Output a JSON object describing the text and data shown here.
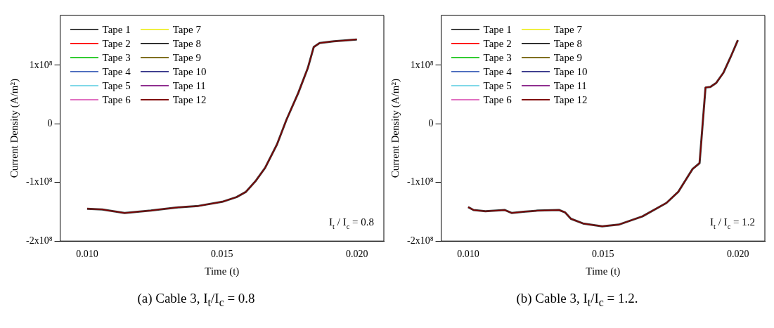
{
  "chart_data": [
    {
      "type": "line",
      "xlabel": "Time (t)",
      "ylabel": "Current Density (A/m²)",
      "xlim": [
        0.009,
        0.021
      ],
      "ylim": [
        -200000000,
        185000000
      ],
      "xticks": [
        {
          "value": 0.01,
          "label": "0.010"
        },
        {
          "value": 0.015,
          "label": "0.015"
        },
        {
          "value": 0.02,
          "label": "0.020"
        }
      ],
      "yticks": [
        {
          "value": -200000000,
          "label": "-2x10⁸"
        },
        {
          "value": -100000000,
          "label": "-1x10⁸"
        },
        0,
        {
          "value": 100000000,
          "label": "1x10⁸"
        }
      ],
      "legend": "top left",
      "marker": "none",
      "line_style": "solid",
      "annotations": [
        "I$_{t}$ / I$_{c}$ = 0.8",
        "(a) Cable 3, I$_{t}$/I$_{c}$ = 0.8"
      ],
      "x": [
        0.01,
        0.01056,
        0.01139,
        0.01236,
        0.01325,
        0.01413,
        0.01501,
        0.01554,
        0.01589,
        0.01624,
        0.0166,
        0.01704,
        0.01739,
        0.01783,
        0.01818,
        0.0184,
        0.01862,
        0.01915,
        0.02
      ],
      "series": [
        {
          "name": "Tape 1",
          "color": "#404040",
          "values": [
            -145000000,
            -146000000,
            -152000000,
            -148000000,
            -143000000,
            -140000000,
            -133000000,
            -125000000,
            -116000000,
            -98000000,
            -75000000,
            -35000000,
            7000000,
            53000000,
            95000000,
            131000000,
            138000000,
            141000000,
            144000000
          ]
        },
        {
          "name": "Tape 2",
          "color": "#ff0000",
          "values": [
            null,
            null,
            null,
            null,
            null,
            null,
            null,
            null,
            null,
            null,
            null,
            null,
            null,
            null,
            null,
            null,
            null,
            null,
            null
          ]
        },
        {
          "name": "Tape 3",
          "color": "#33cc33",
          "values": [
            null,
            null,
            null,
            null,
            null,
            null,
            null,
            null,
            null,
            null,
            null,
            null,
            null,
            null,
            null,
            null,
            null,
            null,
            null
          ]
        },
        {
          "name": "Tape 4",
          "color": "#5070c0",
          "values": [
            null,
            null,
            null,
            null,
            null,
            null,
            null,
            null,
            null,
            null,
            null,
            null,
            null,
            null,
            null,
            null,
            null,
            null,
            null
          ]
        },
        {
          "name": "Tape 5",
          "color": "#80d8e8",
          "values": [
            null,
            null,
            null,
            null,
            null,
            null,
            null,
            null,
            null,
            null,
            null,
            null,
            null,
            null,
            null,
            null,
            null,
            null,
            null
          ]
        },
        {
          "name": "Tape 6",
          "color": "#e070c0",
          "values": [
            null,
            null,
            null,
            null,
            null,
            null,
            null,
            null,
            null,
            null,
            null,
            null,
            null,
            null,
            null,
            null,
            null,
            null,
            null
          ]
        },
        {
          "name": "Tape 7",
          "color": "#f0f040",
          "values": [
            null,
            null,
            null,
            null,
            null,
            null,
            null,
            null,
            null,
            null,
            null,
            null,
            null,
            null,
            null,
            null,
            null,
            null,
            null
          ]
        },
        {
          "name": "Tape 8",
          "color": "#303030",
          "values": [
            null,
            null,
            null,
            null,
            null,
            null,
            null,
            null,
            null,
            null,
            null,
            null,
            null,
            null,
            null,
            null,
            null,
            null,
            null
          ]
        },
        {
          "name": "Tape 9",
          "color": "#807020",
          "values": [
            null,
            null,
            null,
            null,
            null,
            null,
            null,
            null,
            null,
            null,
            null,
            null,
            null,
            null,
            null,
            null,
            null,
            null,
            null
          ]
        },
        {
          "name": "Tape 10",
          "color": "#404090",
          "values": [
            null,
            null,
            null,
            null,
            null,
            null,
            null,
            null,
            null,
            null,
            null,
            null,
            null,
            null,
            null,
            null,
            null,
            null,
            null
          ]
        },
        {
          "name": "Tape 11",
          "color": "#903090",
          "values": [
            null,
            null,
            null,
            null,
            null,
            null,
            null,
            null,
            null,
            null,
            null,
            null,
            null,
            null,
            null,
            null,
            null,
            null,
            null
          ]
        },
        {
          "name": "Tape 12",
          "color": "#800000",
          "values": [
            -145000000,
            -146000000,
            -152000000,
            -148000000,
            -143000000,
            -140000000,
            -133000000,
            -125000000,
            -116000000,
            -98000000,
            -75000000,
            -35000000,
            7000000,
            53000000,
            95000000,
            131000000,
            138000000,
            141000000,
            144000000
          ]
        }
      ]
    },
    {
      "type": "line",
      "xlabel": "Time (t)",
      "ylabel": "Current Density (A/m²)",
      "xlim": [
        0.009,
        0.021
      ],
      "ylim": [
        -200000000,
        185000000
      ],
      "xticks": [
        {
          "value": 0.01,
          "label": "0.010"
        },
        {
          "value": 0.015,
          "label": "0.015"
        },
        {
          "value": 0.02,
          "label": "0.020"
        }
      ],
      "yticks": [
        {
          "value": -200000000,
          "label": "-2x10⁸"
        },
        {
          "value": -100000000,
          "label": "-1x10⁸"
        },
        0,
        {
          "value": 100000000,
          "label": "1x10⁸"
        }
      ],
      "legend": "top left",
      "marker": "none",
      "line_style": "solid",
      "annotations": [
        "I$_{t}$ / I$_{c}$ = 1.2",
        "(b) Cable 3, I$_{t}$/I$_{c}$ = 1.2."
      ],
      "x": [
        0.01,
        0.0102,
        0.01064,
        0.01135,
        0.01161,
        0.01205,
        0.01258,
        0.01337,
        0.01359,
        0.01381,
        0.01426,
        0.01497,
        0.01558,
        0.01646,
        0.01735,
        0.01779,
        0.01832,
        0.01858,
        0.0188,
        0.01898,
        0.0192,
        0.01946,
        0.01973,
        0.02
      ],
      "series": [
        {
          "name": "Tape 1",
          "color": "#404040",
          "values": [
            -142000000,
            -147000000,
            -149000000,
            -147000000,
            -152000000,
            -150000000,
            -148000000,
            -147000000,
            -151000000,
            -162000000,
            -170000000,
            -175000000,
            -172000000,
            -158000000,
            -135000000,
            -116000000,
            -77000000,
            -67000000,
            62000000,
            63000000,
            70000000,
            87000000,
            114000000,
            143000000
          ]
        },
        {
          "name": "Tape 2",
          "color": "#ff0000",
          "values": [
            null,
            null,
            null,
            null,
            null,
            null,
            null,
            null,
            null,
            null,
            null,
            null,
            null,
            null,
            null,
            null,
            null,
            null,
            null,
            null,
            null,
            null,
            null,
            null
          ]
        },
        {
          "name": "Tape 3",
          "color": "#33cc33",
          "values": [
            null,
            null,
            null,
            null,
            null,
            null,
            null,
            null,
            null,
            null,
            null,
            null,
            null,
            null,
            null,
            null,
            null,
            null,
            null,
            null,
            null,
            null,
            null,
            null
          ]
        },
        {
          "name": "Tape 4",
          "color": "#5070c0",
          "values": [
            null,
            null,
            null,
            null,
            null,
            null,
            null,
            null,
            null,
            null,
            null,
            null,
            null,
            null,
            null,
            null,
            null,
            null,
            null,
            null,
            null,
            null,
            null,
            null
          ]
        },
        {
          "name": "Tape 5",
          "color": "#80d8e8",
          "values": [
            null,
            null,
            null,
            null,
            null,
            null,
            null,
            null,
            null,
            null,
            null,
            null,
            null,
            null,
            null,
            null,
            null,
            null,
            null,
            null,
            null,
            null,
            null,
            null
          ]
        },
        {
          "name": "Tape 6",
          "color": "#e070c0",
          "values": [
            null,
            null,
            null,
            null,
            null,
            null,
            null,
            null,
            null,
            null,
            null,
            null,
            null,
            null,
            null,
            null,
            null,
            null,
            null,
            null,
            null,
            null,
            null,
            null
          ]
        },
        {
          "name": "Tape 7",
          "color": "#f0f040",
          "values": [
            null,
            null,
            null,
            null,
            null,
            null,
            null,
            null,
            null,
            null,
            null,
            null,
            null,
            null,
            null,
            null,
            null,
            null,
            null,
            null,
            null,
            null,
            null,
            null
          ]
        },
        {
          "name": "Tape 8",
          "color": "#303030",
          "values": [
            null,
            null,
            null,
            null,
            null,
            null,
            null,
            null,
            null,
            null,
            null,
            null,
            null,
            null,
            null,
            null,
            null,
            null,
            null,
            null,
            null,
            null,
            null,
            null
          ]
        },
        {
          "name": "Tape 9",
          "color": "#807020",
          "values": [
            null,
            null,
            null,
            null,
            null,
            null,
            null,
            null,
            null,
            null,
            null,
            null,
            null,
            null,
            null,
            null,
            null,
            null,
            null,
            null,
            null,
            null,
            null,
            null
          ]
        },
        {
          "name": "Tape 10",
          "color": "#404090",
          "values": [
            null,
            null,
            null,
            null,
            null,
            null,
            null,
            null,
            null,
            null,
            null,
            null,
            null,
            null,
            null,
            null,
            null,
            null,
            null,
            null,
            null,
            null,
            null,
            null
          ]
        },
        {
          "name": "Tape 11",
          "color": "#903090",
          "values": [
            null,
            null,
            null,
            null,
            null,
            null,
            null,
            null,
            null,
            null,
            null,
            null,
            null,
            null,
            null,
            null,
            null,
            null,
            null,
            null,
            null,
            null,
            null,
            null
          ]
        },
        {
          "name": "Tape 12",
          "color": "#800000",
          "values": [
            -142000000,
            -147000000,
            -149000000,
            -147000000,
            -152000000,
            -150000000,
            -148000000,
            -147000000,
            -151000000,
            -162000000,
            -170000000,
            -175000000,
            -172000000,
            -158000000,
            -135000000,
            -116000000,
            -77000000,
            -67000000,
            62000000,
            63000000,
            70000000,
            87000000,
            114000000,
            143000000
          ]
        }
      ]
    }
  ]
}
